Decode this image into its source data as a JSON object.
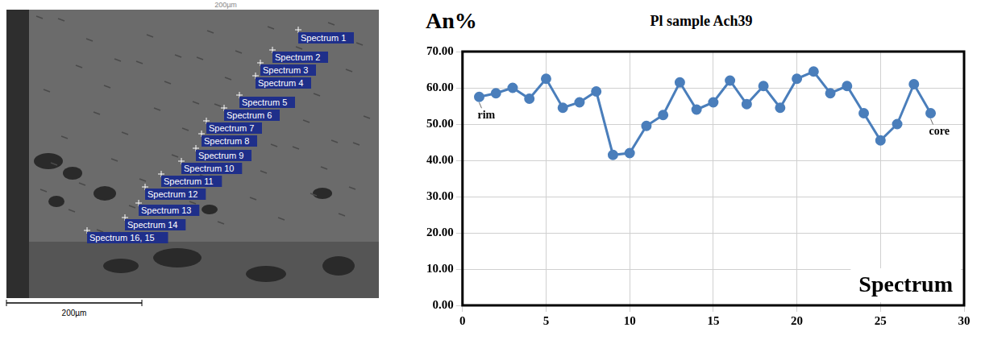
{
  "chart_data": {
    "type": "line",
    "title": "Pl sample Ach39",
    "y_label": "An%",
    "x_label": "Spectrum",
    "x": [
      1,
      2,
      3,
      4,
      5,
      6,
      7,
      8,
      9,
      10,
      11,
      12,
      13,
      14,
      15,
      16,
      17,
      18,
      19,
      20,
      21,
      22,
      23,
      24,
      25,
      26,
      27,
      28
    ],
    "values": [
      57.5,
      58.5,
      60,
      57,
      62.5,
      54.5,
      56,
      59,
      41.5,
      42,
      49.5,
      52.5,
      61.5,
      54,
      56,
      62,
      55.5,
      60.5,
      54.5,
      62.5,
      64.5,
      58.5,
      60.5,
      53,
      45.5,
      50,
      61,
      53
    ],
    "color": "#4a7ebb",
    "marker": "circle",
    "xlim": [
      0,
      30
    ],
    "xticks": [
      0,
      5,
      10,
      15,
      20,
      25,
      30
    ],
    "ylim": [
      0,
      70
    ],
    "yticks": [
      {
        "value": 0,
        "label": "0.00"
      },
      {
        "value": 10,
        "label": "10.00"
      },
      {
        "value": 20,
        "label": "20.00"
      },
      {
        "value": 30,
        "label": "30.00"
      },
      {
        "value": 40,
        "label": "40.00"
      },
      {
        "value": 50,
        "label": "50.00"
      },
      {
        "value": 60,
        "label": "60.00"
      },
      {
        "value": 70,
        "label": "70.00"
      }
    ],
    "grid": true,
    "annotations": [
      {
        "text": "rim",
        "x": 1
      },
      {
        "text": "core",
        "x": 28
      }
    ]
  },
  "micrograph": {
    "top_label": "200µm",
    "scale_bar": "200µm",
    "spectrum_labels": [
      "Spectrum 1",
      "Spectrum 2",
      "Spectrum 3",
      "Spectrum 4",
      "Spectrum 5",
      "Spectrum 6",
      "Spectrum 7",
      "Spectrum 8",
      "Spectrum 9",
      "Spectrum 10",
      "Spectrum 11",
      "Spectrum 12",
      "Spectrum 13",
      "Spectrum 14",
      "Spectrum 16, 15"
    ]
  }
}
